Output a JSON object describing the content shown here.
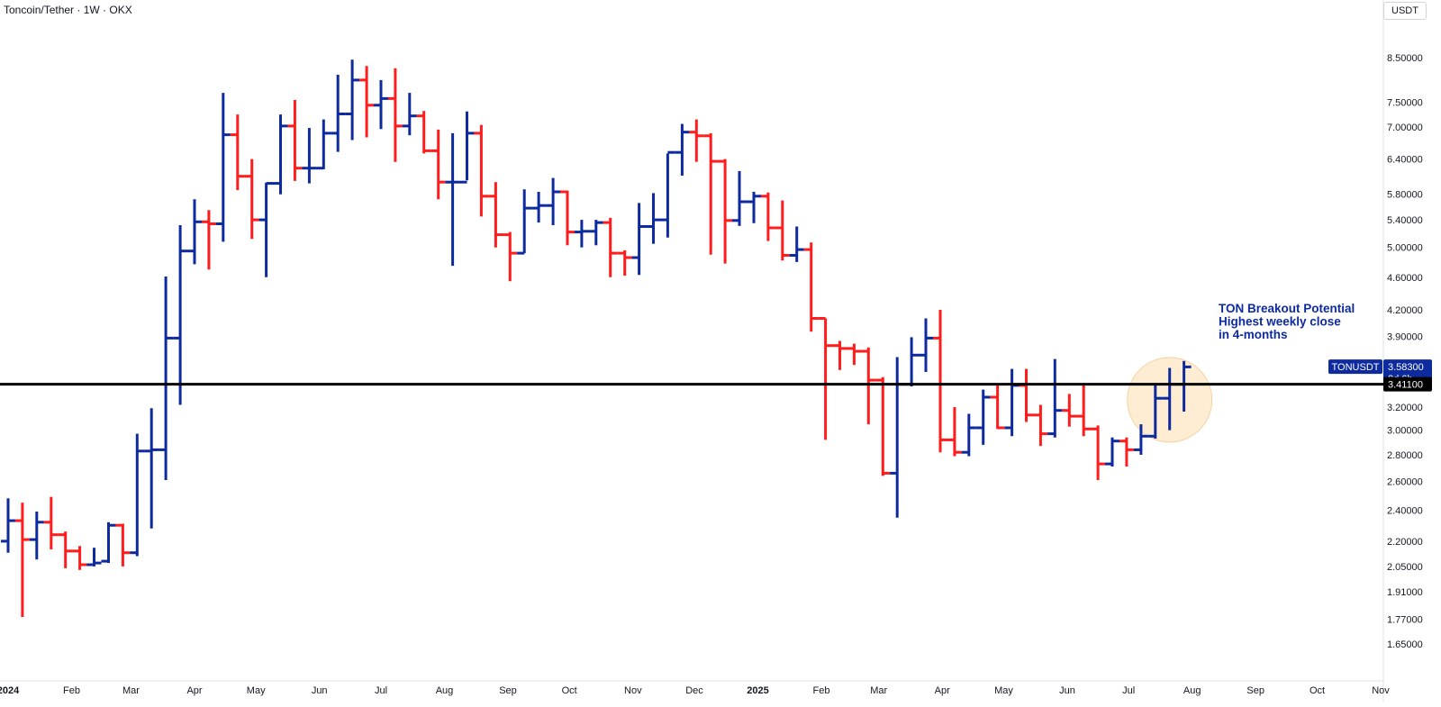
{
  "header": {
    "symbol_title": "Toncoin/Tether · 1W · OKX"
  },
  "price_scale": {
    "currency": "USDT"
  },
  "annotation": {
    "lines": [
      "TON Breakout Potential",
      "Highest weekly close",
      "in 4-months"
    ],
    "color": "#0d2a9e",
    "highlight_fill": "#fde7c4"
  },
  "badges": {
    "symbol": "TONUSDT",
    "last_price": "3.58300",
    "countdown": "2d 6h",
    "level_price": "3.41100"
  },
  "chart_data": {
    "type": "ohlc",
    "title": "Toncoin/Tether · 1W · OKX",
    "scale": "log",
    "ylim": [
      1.55,
      9.35
    ],
    "y_ticks": [
      "1.65000",
      "1.77000",
      "1.91000",
      "2.05000",
      "2.20000",
      "2.40000",
      "2.60000",
      "2.80000",
      "3.00000",
      "3.20000",
      "3.60000",
      "3.90000",
      "4.20000",
      "4.60000",
      "5.00000",
      "5.40000",
      "5.80000",
      "6.40000",
      "7.00000",
      "7.50000",
      "8.50000"
    ],
    "x_ticks": [
      {
        "label": "2024",
        "date": "2024-01-01",
        "bold": true
      },
      {
        "label": "Feb",
        "date": "2024-02-01"
      },
      {
        "label": "Mar",
        "date": "2024-03-01"
      },
      {
        "label": "Apr",
        "date": "2024-04-01"
      },
      {
        "label": "May",
        "date": "2024-05-01"
      },
      {
        "label": "Jun",
        "date": "2024-06-01"
      },
      {
        "label": "Jul",
        "date": "2024-07-01"
      },
      {
        "label": "Aug",
        "date": "2024-08-01"
      },
      {
        "label": "Sep",
        "date": "2024-09-01"
      },
      {
        "label": "Oct",
        "date": "2024-10-01"
      },
      {
        "label": "Nov",
        "date": "2024-11-01"
      },
      {
        "label": "Dec",
        "date": "2024-12-01"
      },
      {
        "label": "2025",
        "date": "2025-01-01",
        "bold": true
      },
      {
        "label": "Feb",
        "date": "2025-02-01"
      },
      {
        "label": "Mar",
        "date": "2025-03-01"
      },
      {
        "label": "Apr",
        "date": "2025-04-01"
      },
      {
        "label": "May",
        "date": "2025-05-01"
      },
      {
        "label": "Jun",
        "date": "2025-06-01"
      },
      {
        "label": "Jul",
        "date": "2025-07-01"
      },
      {
        "label": "Aug",
        "date": "2025-08-01"
      },
      {
        "label": "Sep",
        "date": "2025-09-01"
      },
      {
        "label": "Oct",
        "date": "2025-10-01"
      },
      {
        "label": "Nov",
        "date": "2025-11-01"
      }
    ],
    "horizontal_line": 3.411,
    "last_price": 3.583,
    "up_color": "#0d2a9e",
    "down_color": "#ff1c1c",
    "bars": [
      {
        "t": "2024-01-01",
        "o": 2.2,
        "h": 2.48,
        "l": 2.13,
        "c": 2.33
      },
      {
        "t": "2024-01-08",
        "o": 2.33,
        "h": 2.45,
        "l": 1.78,
        "c": 2.21
      },
      {
        "t": "2024-01-15",
        "o": 2.21,
        "h": 2.39,
        "l": 2.09,
        "c": 2.32
      },
      {
        "t": "2024-01-22",
        "o": 2.32,
        "h": 2.49,
        "l": 2.15,
        "c": 2.24
      },
      {
        "t": "2024-01-29",
        "o": 2.24,
        "h": 2.26,
        "l": 2.04,
        "c": 2.14
      },
      {
        "t": "2024-02-05",
        "o": 2.14,
        "h": 2.17,
        "l": 2.03,
        "c": 2.06
      },
      {
        "t": "2024-02-12",
        "o": 2.06,
        "h": 2.16,
        "l": 2.05,
        "c": 2.07
      },
      {
        "t": "2024-02-19",
        "o": 2.08,
        "h": 2.32,
        "l": 2.07,
        "c": 2.3
      },
      {
        "t": "2024-02-26",
        "o": 2.3,
        "h": 2.31,
        "l": 2.05,
        "c": 2.13
      },
      {
        "t": "2024-03-04",
        "o": 2.13,
        "h": 2.97,
        "l": 2.11,
        "c": 2.83
      },
      {
        "t": "2024-03-11",
        "o": 2.83,
        "h": 3.19,
        "l": 2.28,
        "c": 2.84
      },
      {
        "t": "2024-03-18",
        "o": 2.84,
        "h": 4.61,
        "l": 2.61,
        "c": 3.88
      },
      {
        "t": "2024-03-25",
        "o": 3.88,
        "h": 5.32,
        "l": 3.22,
        "c": 4.95
      },
      {
        "t": "2024-04-01",
        "o": 4.95,
        "h": 5.72,
        "l": 4.77,
        "c": 5.37
      },
      {
        "t": "2024-04-08",
        "o": 5.37,
        "h": 5.55,
        "l": 4.7,
        "c": 5.34
      },
      {
        "t": "2024-04-15",
        "o": 5.34,
        "h": 7.7,
        "l": 5.08,
        "c": 6.85
      },
      {
        "t": "2024-04-22",
        "o": 6.85,
        "h": 7.25,
        "l": 5.87,
        "c": 6.1
      },
      {
        "t": "2024-04-29",
        "o": 6.1,
        "h": 6.4,
        "l": 5.12,
        "c": 5.4
      },
      {
        "t": "2024-05-06",
        "o": 5.4,
        "h": 5.99,
        "l": 4.6,
        "c": 5.98
      },
      {
        "t": "2024-05-13",
        "o": 5.98,
        "h": 7.25,
        "l": 5.8,
        "c": 7.02
      },
      {
        "t": "2024-05-20",
        "o": 7.02,
        "h": 7.55,
        "l": 6.02,
        "c": 6.24
      },
      {
        "t": "2024-05-27",
        "o": 6.24,
        "h": 6.98,
        "l": 5.98,
        "c": 6.24
      },
      {
        "t": "2024-06-03",
        "o": 6.24,
        "h": 7.15,
        "l": 6.22,
        "c": 6.88
      },
      {
        "t": "2024-06-10",
        "o": 6.88,
        "h": 8.1,
        "l": 6.53,
        "c": 7.26
      },
      {
        "t": "2024-06-17",
        "o": 7.26,
        "h": 8.45,
        "l": 6.75,
        "c": 7.98
      },
      {
        "t": "2024-06-24",
        "o": 7.98,
        "h": 8.3,
        "l": 6.8,
        "c": 7.44
      },
      {
        "t": "2024-07-01",
        "o": 7.44,
        "h": 7.98,
        "l": 6.96,
        "c": 7.58
      },
      {
        "t": "2024-07-08",
        "o": 7.58,
        "h": 8.25,
        "l": 6.35,
        "c": 7.02
      },
      {
        "t": "2024-07-15",
        "o": 7.02,
        "h": 7.7,
        "l": 6.84,
        "c": 7.22
      },
      {
        "t": "2024-07-22",
        "o": 7.22,
        "h": 7.32,
        "l": 6.5,
        "c": 6.55
      },
      {
        "t": "2024-07-29",
        "o": 6.55,
        "h": 6.95,
        "l": 5.72,
        "c": 6.0
      },
      {
        "t": "2024-08-05",
        "o": 6.0,
        "h": 6.88,
        "l": 4.75,
        "c": 6.0
      },
      {
        "t": "2024-08-12",
        "o": 6.0,
        "h": 7.31,
        "l": 6.03,
        "c": 6.88
      },
      {
        "t": "2024-08-19",
        "o": 6.88,
        "h": 7.04,
        "l": 5.45,
        "c": 5.77
      },
      {
        "t": "2024-08-26",
        "o": 5.77,
        "h": 6.0,
        "l": 5.0,
        "c": 5.18
      },
      {
        "t": "2024-09-02",
        "o": 5.18,
        "h": 5.22,
        "l": 4.55,
        "c": 4.92
      },
      {
        "t": "2024-09-09",
        "o": 4.92,
        "h": 5.88,
        "l": 4.92,
        "c": 5.58
      },
      {
        "t": "2024-09-16",
        "o": 5.58,
        "h": 5.84,
        "l": 5.36,
        "c": 5.62
      },
      {
        "t": "2024-09-23",
        "o": 5.62,
        "h": 6.07,
        "l": 5.32,
        "c": 5.84
      },
      {
        "t": "2024-09-30",
        "o": 5.84,
        "h": 5.86,
        "l": 5.03,
        "c": 5.22
      },
      {
        "t": "2024-10-07",
        "o": 5.22,
        "h": 5.4,
        "l": 5.0,
        "c": 5.23
      },
      {
        "t": "2024-10-14",
        "o": 5.23,
        "h": 5.4,
        "l": 5.03,
        "c": 5.36
      },
      {
        "t": "2024-10-21",
        "o": 5.36,
        "h": 5.43,
        "l": 4.6,
        "c": 4.92
      },
      {
        "t": "2024-10-28",
        "o": 4.92,
        "h": 4.96,
        "l": 4.62,
        "c": 4.86
      },
      {
        "t": "2024-11-04",
        "o": 4.86,
        "h": 5.66,
        "l": 4.63,
        "c": 5.3
      },
      {
        "t": "2024-11-11",
        "o": 5.3,
        "h": 5.82,
        "l": 5.05,
        "c": 5.4
      },
      {
        "t": "2024-11-18",
        "o": 5.4,
        "h": 6.5,
        "l": 5.14,
        "c": 6.52
      },
      {
        "t": "2024-11-25",
        "o": 6.52,
        "h": 7.06,
        "l": 6.11,
        "c": 6.9
      },
      {
        "t": "2024-12-02",
        "o": 6.9,
        "h": 7.15,
        "l": 6.35,
        "c": 6.83
      },
      {
        "t": "2024-12-09",
        "o": 6.83,
        "h": 6.88,
        "l": 4.9,
        "c": 6.36
      },
      {
        "t": "2024-12-16",
        "o": 6.36,
        "h": 6.4,
        "l": 4.78,
        "c": 5.39
      },
      {
        "t": "2024-12-23",
        "o": 5.39,
        "h": 6.19,
        "l": 5.31,
        "c": 5.68
      },
      {
        "t": "2024-12-30",
        "o": 5.68,
        "h": 5.84,
        "l": 5.35,
        "c": 5.77
      },
      {
        "t": "2025-01-06",
        "o": 5.77,
        "h": 5.83,
        "l": 5.09,
        "c": 5.28
      },
      {
        "t": "2025-01-13",
        "o": 5.28,
        "h": 5.7,
        "l": 4.82,
        "c": 4.89
      },
      {
        "t": "2025-01-20",
        "o": 4.89,
        "h": 5.3,
        "l": 4.8,
        "c": 4.97
      },
      {
        "t": "2025-01-27",
        "o": 4.97,
        "h": 5.07,
        "l": 3.95,
        "c": 4.1
      },
      {
        "t": "2025-02-03",
        "o": 4.1,
        "h": 4.1,
        "l": 2.92,
        "c": 3.8
      },
      {
        "t": "2025-02-10",
        "o": 3.8,
        "h": 3.85,
        "l": 3.55,
        "c": 3.77
      },
      {
        "t": "2025-02-17",
        "o": 3.77,
        "h": 3.82,
        "l": 3.6,
        "c": 3.74
      },
      {
        "t": "2025-02-24",
        "o": 3.74,
        "h": 3.78,
        "l": 3.05,
        "c": 3.45
      },
      {
        "t": "2025-03-03",
        "o": 3.45,
        "h": 3.48,
        "l": 2.64,
        "c": 2.66
      },
      {
        "t": "2025-03-10",
        "o": 2.66,
        "h": 3.68,
        "l": 2.35,
        "c": 3.41
      },
      {
        "t": "2025-03-17",
        "o": 3.41,
        "h": 3.89,
        "l": 3.39,
        "c": 3.7
      },
      {
        "t": "2025-03-24",
        "o": 3.7,
        "h": 4.1,
        "l": 3.53,
        "c": 3.88
      },
      {
        "t": "2025-03-31",
        "o": 3.88,
        "h": 4.2,
        "l": 2.82,
        "c": 2.92
      },
      {
        "t": "2025-04-07",
        "o": 2.92,
        "h": 3.2,
        "l": 2.79,
        "c": 2.82
      },
      {
        "t": "2025-04-14",
        "o": 2.82,
        "h": 3.14,
        "l": 2.79,
        "c": 3.02
      },
      {
        "t": "2025-04-21",
        "o": 3.02,
        "h": 3.36,
        "l": 2.88,
        "c": 3.29
      },
      {
        "t": "2025-04-28",
        "o": 3.29,
        "h": 3.4,
        "l": 3.01,
        "c": 3.02
      },
      {
        "t": "2025-05-05",
        "o": 3.02,
        "h": 3.56,
        "l": 2.95,
        "c": 3.4
      },
      {
        "t": "2025-05-12",
        "o": 3.4,
        "h": 3.56,
        "l": 3.07,
        "c": 3.13
      },
      {
        "t": "2025-05-19",
        "o": 3.13,
        "h": 3.22,
        "l": 2.87,
        "c": 2.97
      },
      {
        "t": "2025-05-26",
        "o": 2.97,
        "h": 3.66,
        "l": 2.94,
        "c": 3.17
      },
      {
        "t": "2025-06-02",
        "o": 3.17,
        "h": 3.32,
        "l": 3.03,
        "c": 3.12
      },
      {
        "t": "2025-06-09",
        "o": 3.12,
        "h": 3.4,
        "l": 2.95,
        "c": 3.01
      },
      {
        "t": "2025-06-16",
        "o": 3.01,
        "h": 3.04,
        "l": 2.61,
        "c": 2.73
      },
      {
        "t": "2025-06-23",
        "o": 2.73,
        "h": 2.94,
        "l": 2.71,
        "c": 2.91
      },
      {
        "t": "2025-06-30",
        "o": 2.91,
        "h": 2.94,
        "l": 2.71,
        "c": 2.84
      },
      {
        "t": "2025-07-07",
        "o": 2.84,
        "h": 3.05,
        "l": 2.8,
        "c": 2.95
      },
      {
        "t": "2025-07-14",
        "o": 2.95,
        "h": 3.4,
        "l": 2.93,
        "c": 3.28
      },
      {
        "t": "2025-07-21",
        "o": 3.28,
        "h": 3.57,
        "l": 3.0,
        "c": 3.41
      },
      {
        "t": "2025-07-28",
        "o": 3.41,
        "h": 3.64,
        "l": 3.16,
        "c": 3.58
      }
    ]
  }
}
